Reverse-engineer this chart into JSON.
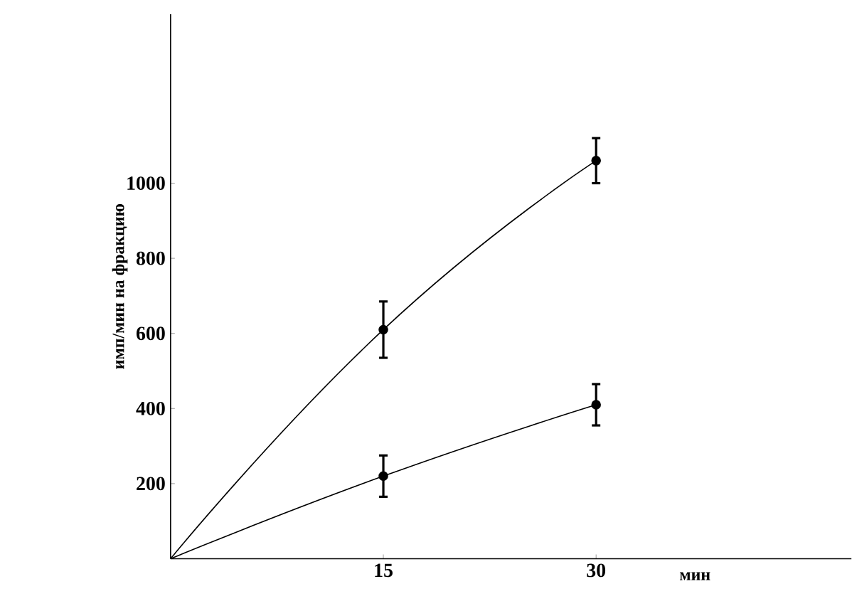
{
  "chart_data": {
    "type": "line",
    "xlabel": "мин",
    "ylabel": "имп/мин на фракцию",
    "x": [
      0,
      15,
      30
    ],
    "series": [
      {
        "color": "#000000",
        "values": [
          0,
          610,
          1060
        ],
        "errors": [
          null,
          75,
          60
        ]
      },
      {
        "color": "#000000",
        "values": [
          0,
          220,
          410
        ],
        "errors": [
          null,
          55,
          55
        ]
      }
    ],
    "xlim": [
      0,
      48
    ],
    "ylim": [
      0,
      1450
    ],
    "xticks": [
      15,
      30
    ],
    "yticks": [
      200,
      400,
      600,
      800,
      1000
    ],
    "marker": "circle",
    "line_style": "solid"
  }
}
